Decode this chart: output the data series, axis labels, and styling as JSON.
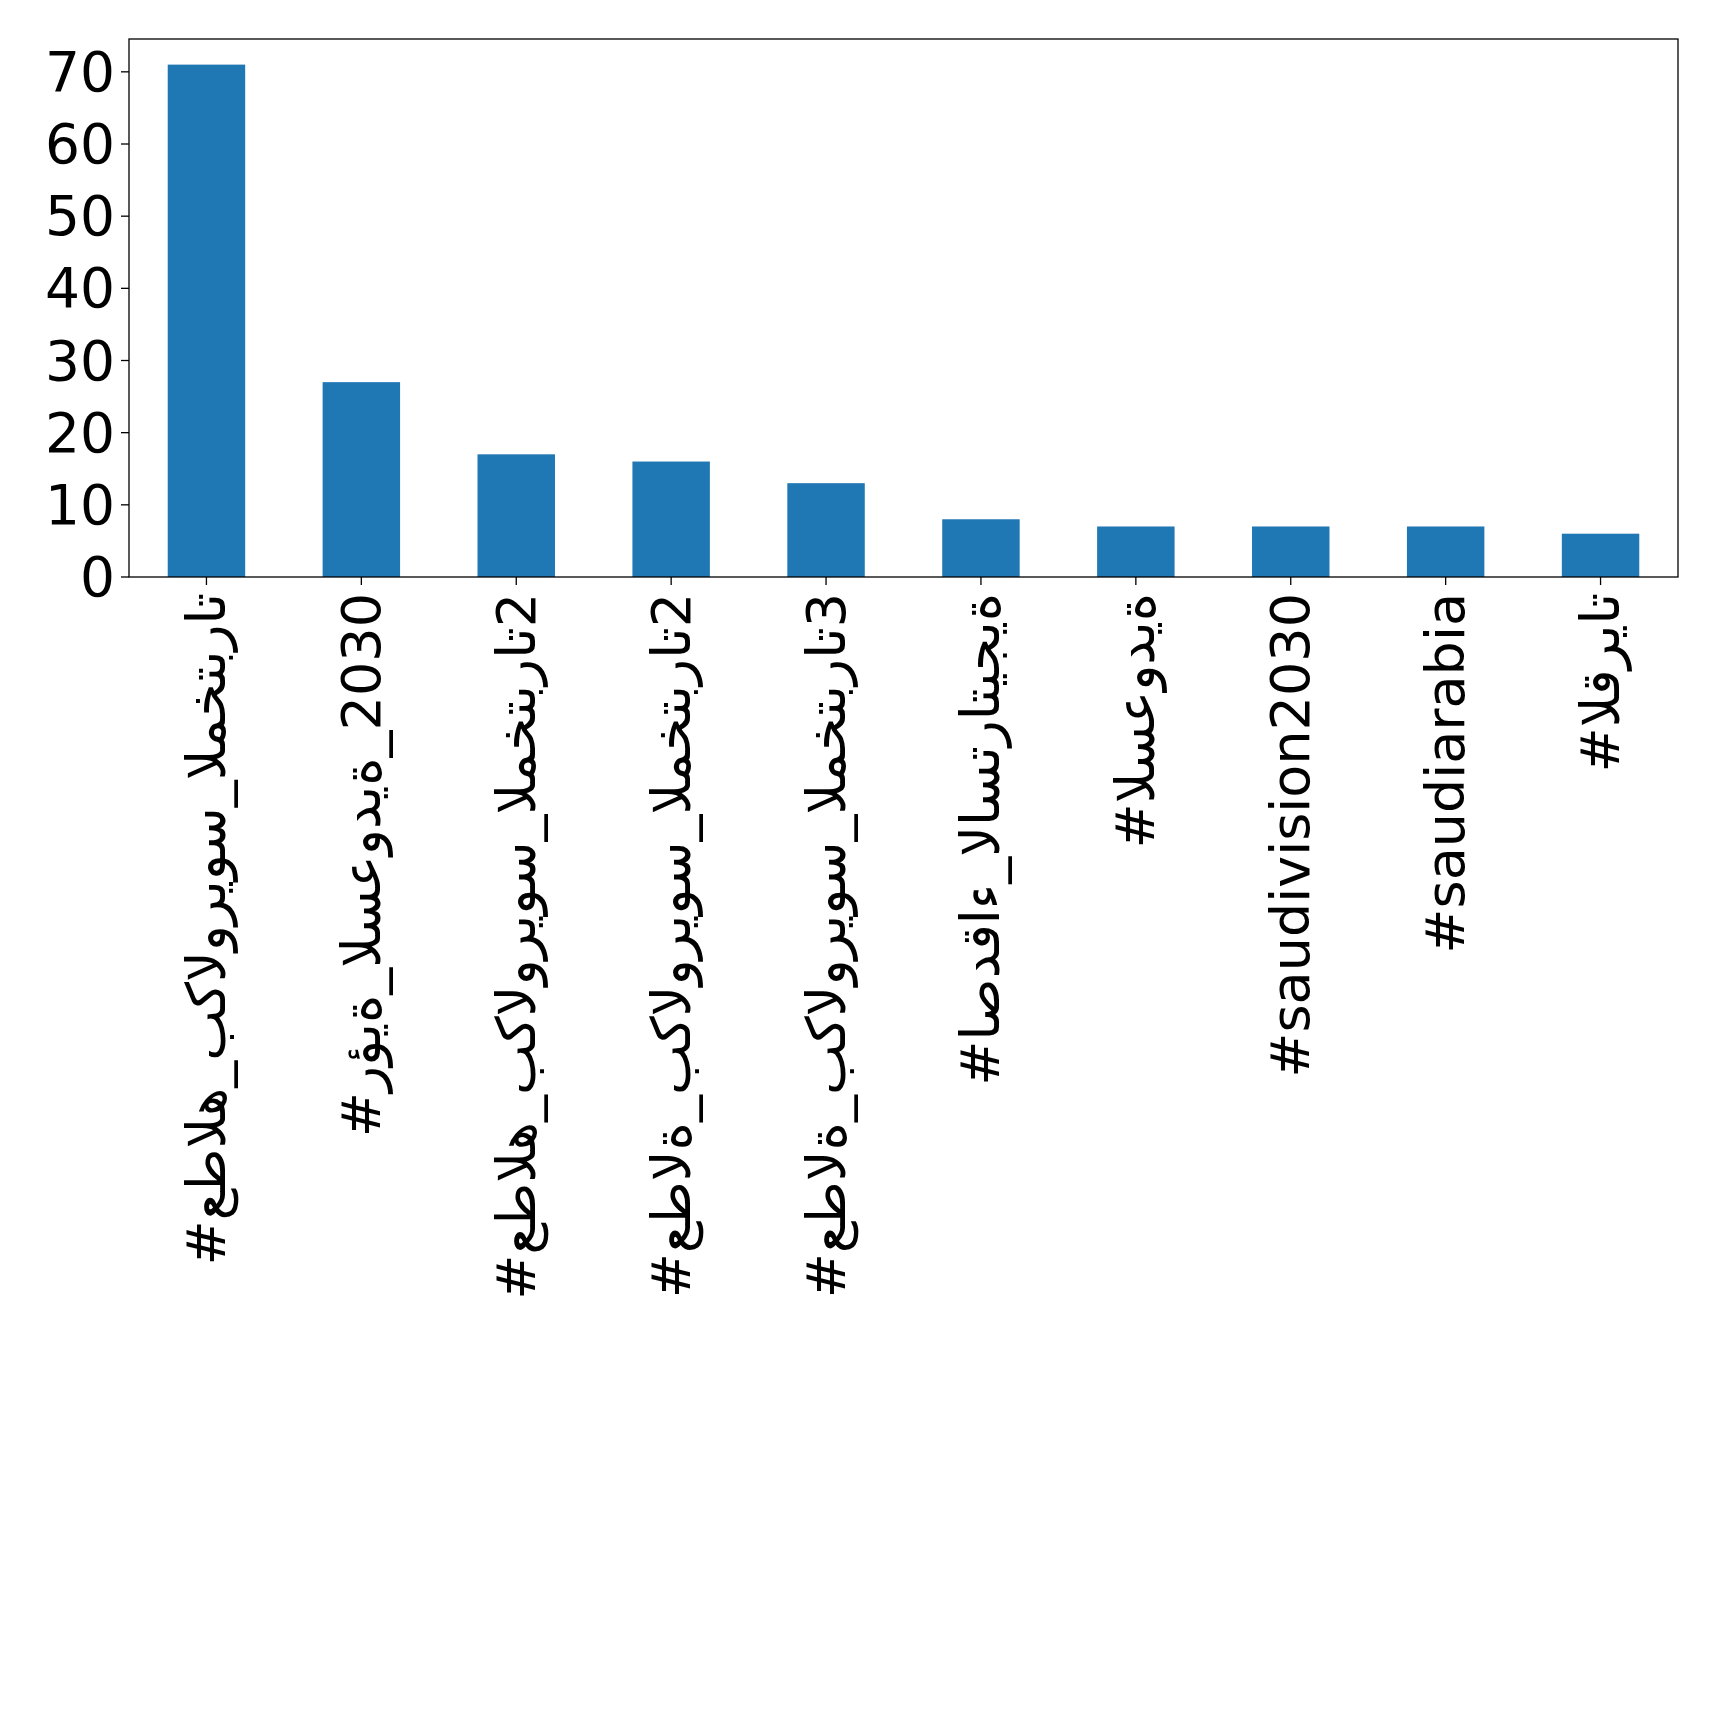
{
  "chart_data": {
    "type": "bar",
    "categories": [
      "#عطاله_بكالوريوس_المختبرات",
      "#رؤية_السعودية_2030",
      "#عطاله_بكالوريوس_المختبرات2",
      "#عطالة_بكالوريوس_المختبرات2",
      "#عطالة_بكالوريوس_المختبرات3",
      "#اصدقاء_الاستراتيجية",
      "#السعودية",
      "#saudivision2030",
      "#saudiarabia",
      "#القريات"
    ],
    "values": [
      71,
      27,
      17,
      16,
      13,
      8,
      7,
      7,
      7,
      6
    ],
    "color": "#1f77b4",
    "ylim": [
      0,
      74.55
    ],
    "yticks": [
      0,
      10,
      20,
      30,
      40,
      50,
      60,
      70
    ]
  }
}
